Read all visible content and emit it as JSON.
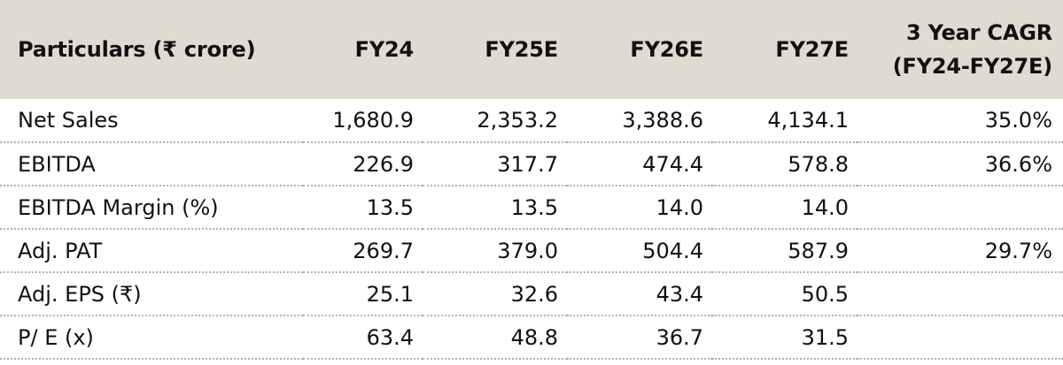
{
  "table": {
    "headers": [
      "Particulars (₹ crore)",
      "FY24",
      "FY25E",
      "FY26E",
      "FY27E",
      "3 Year CAGR",
      "(FY24-FY27E)"
    ],
    "rows": [
      [
        "Net Sales",
        "1,680.9",
        "2,353.2",
        "3,388.6",
        "4,134.1",
        "35.0%"
      ],
      [
        "EBITDA",
        "226.9",
        "317.7",
        "474.4",
        "578.8",
        "36.6%"
      ],
      [
        "EBITDA Margin (%)",
        "13.5",
        "13.5",
        "14.0",
        "14.0",
        ""
      ],
      [
        "Adj. PAT",
        "269.7",
        "379.0",
        "504.4",
        "587.9",
        "29.7%"
      ],
      [
        "Adj. EPS (₹)",
        "25.1",
        "32.6",
        "43.4",
        "50.5",
        ""
      ],
      [
        "P/ E (x)",
        "63.4",
        "48.8",
        "36.7",
        "31.5",
        ""
      ]
    ]
  },
  "colors": {
    "header_background": "#dedbd0",
    "row_divider": "#b3b3b3",
    "text": "#111111"
  }
}
